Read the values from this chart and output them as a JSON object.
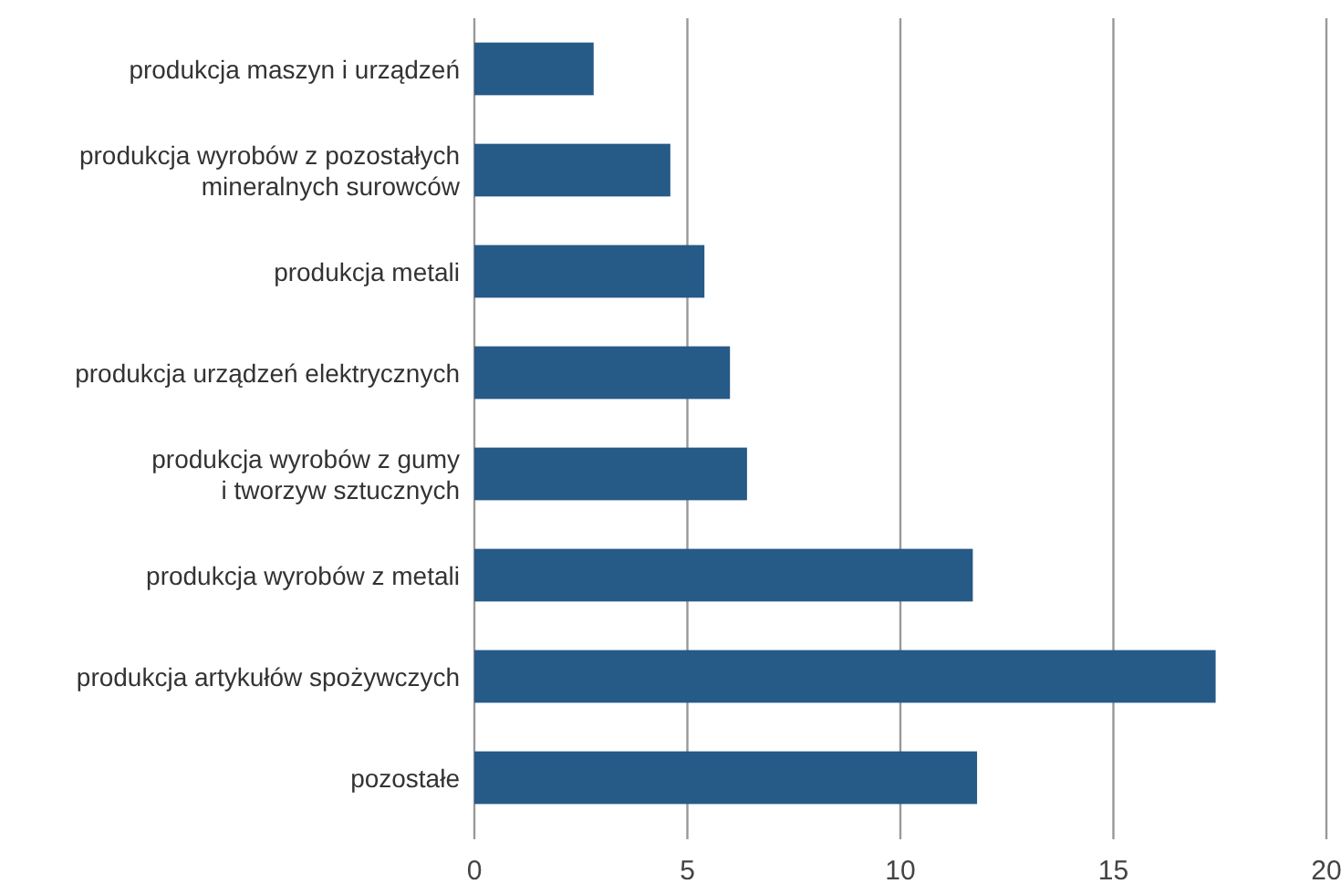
{
  "chart_data": {
    "type": "bar",
    "orientation": "horizontal",
    "categories": [
      "produkcja maszyn i urządzeń",
      "produkcja wyrobów z pozostałych\nmineralnych surowców",
      "produkcja metali",
      "produkcja urządzeń elektrycznych",
      "produkcja wyrobów z gumy\ni tworzyw sztucznych",
      "produkcja wyrobów z metali",
      "produkcja artykułów spożywczych",
      "pozostałe"
    ],
    "values": [
      2.8,
      4.6,
      5.4,
      6.0,
      6.4,
      11.7,
      17.4,
      11.8
    ],
    "color": "#265a87",
    "xlim": [
      0,
      20
    ],
    "xticks": [
      0,
      5,
      10,
      15,
      20
    ],
    "grid": "x"
  }
}
